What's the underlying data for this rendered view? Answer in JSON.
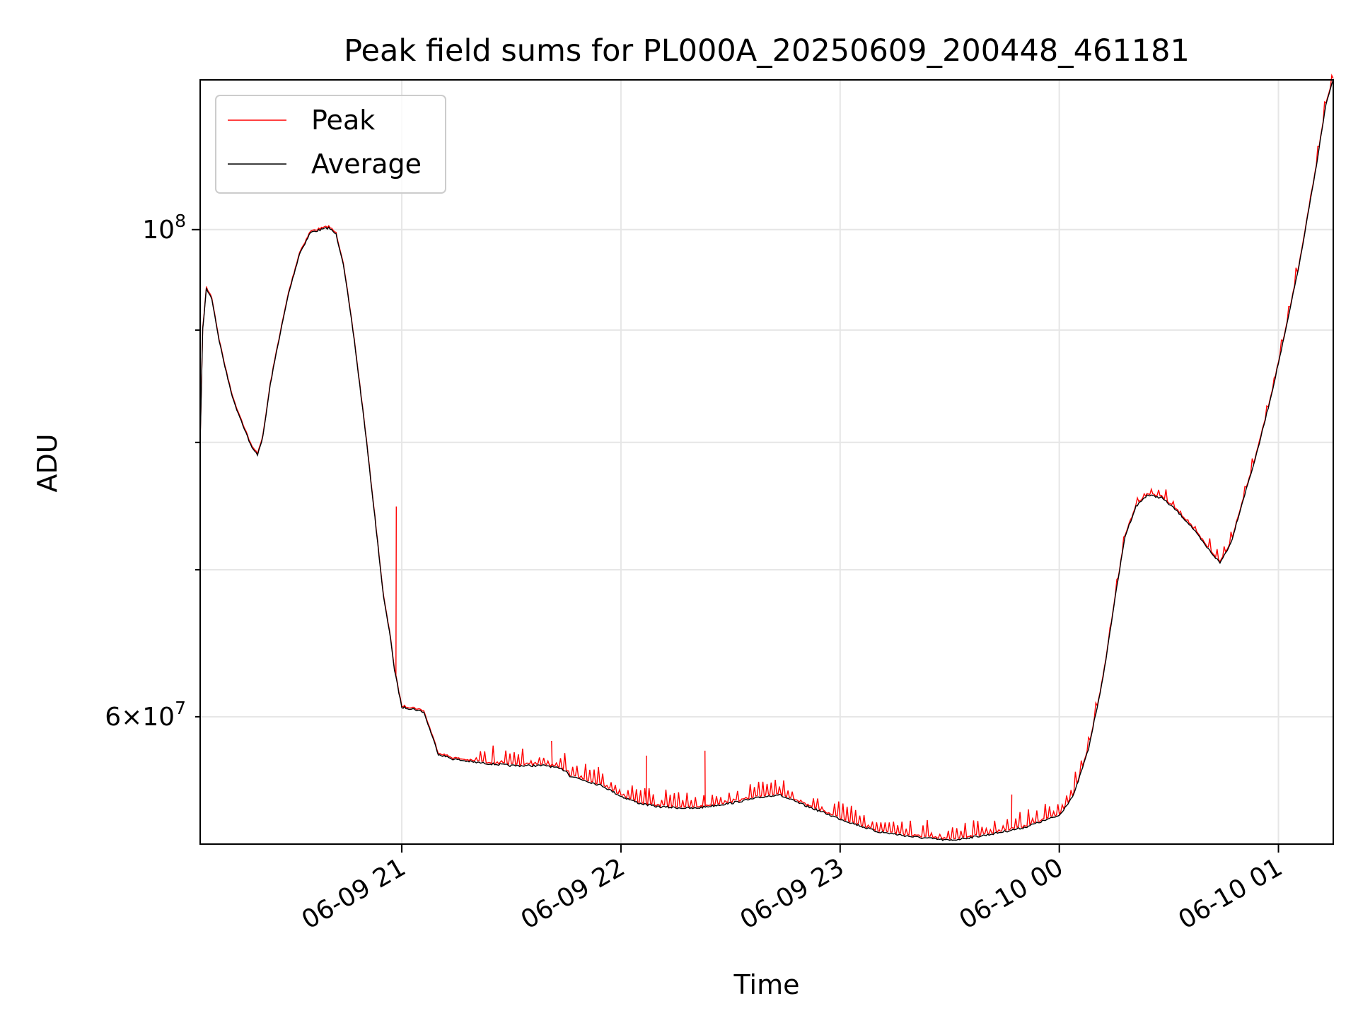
{
  "chart_data": {
    "type": "line",
    "title": "Peak field sums for PL000A_20250609_200448_461181",
    "xlabel": "Time",
    "ylabel": "ADU",
    "x_axis": {
      "kind": "datetime",
      "range": [
        "2025-06-09 20:04:48",
        "2025-06-10 01:15:00"
      ],
      "ticks": [
        "2025-06-09 21:00",
        "2025-06-09 22:00",
        "2025-06-09 23:00",
        "2025-06-10 00:00",
        "2025-06-10 01:00"
      ],
      "tick_labels": [
        "06-09 21",
        "06-09 22",
        "06-09 23",
        "06-10 00",
        "06-10 01"
      ],
      "tick_label_rotation": 30
    },
    "y_axis": {
      "scale": "log",
      "range": [
        52500000,
        117000000
      ],
      "major_ticks": [
        100000000
      ],
      "major_tick_labels": [
        "10^8"
      ],
      "minor_ticks": [
        60000000,
        70000000,
        80000000,
        90000000
      ],
      "minor_tick_labels": [
        "6×10^7",
        "",
        "",
        ""
      ]
    },
    "grid": true,
    "legend": {
      "placement": "upper left",
      "entries": [
        {
          "label": "Peak",
          "color": "#ff0000"
        },
        {
          "label": "Average",
          "color": "#000000"
        }
      ]
    },
    "series": [
      {
        "name": "Average",
        "color": "#000000",
        "x": [
          "2025-06-09 20:04:48",
          "2025-06-09 20:05:30",
          "2025-06-09 20:06:30",
          "2025-06-09 20:08:00",
          "2025-06-09 20:10:00",
          "2025-06-09 20:12:00",
          "2025-06-09 20:14:00",
          "2025-06-09 20:16:30",
          "2025-06-09 20:19:00",
          "2025-06-09 20:20:30",
          "2025-06-09 20:22:00",
          "2025-06-09 20:24:00",
          "2025-06-09 20:26:00",
          "2025-06-09 20:29:00",
          "2025-06-09 20:32:00",
          "2025-06-09 20:35:00",
          "2025-06-09 20:38:00",
          "2025-06-09 20:40:00",
          "2025-06-09 20:42:00",
          "2025-06-09 20:44:00",
          "2025-06-09 20:47:00",
          "2025-06-09 20:50:00",
          "2025-06-09 20:53:00",
          "2025-06-09 20:55:00",
          "2025-06-09 20:57:00",
          "2025-06-09 20:58:00",
          "2025-06-09 21:00:00",
          "2025-06-09 21:03:00",
          "2025-06-09 21:06:00",
          "2025-06-09 21:08:00",
          "2025-06-09 21:10:00",
          "2025-06-09 21:14:00",
          "2025-06-09 21:20:00",
          "2025-06-09 21:30:00",
          "2025-06-09 21:40:00",
          "2025-06-09 21:45:00",
          "2025-06-09 21:46:00",
          "2025-06-09 21:55:00",
          "2025-06-09 22:00:00",
          "2025-06-09 22:05:00",
          "2025-06-09 22:10:00",
          "2025-06-09 22:20:00",
          "2025-06-09 22:30:00",
          "2025-06-09 22:40:00",
          "2025-06-09 22:43:00",
          "2025-06-09 22:50:00",
          "2025-06-09 23:00:00",
          "2025-06-09 23:10:00",
          "2025-06-09 23:20:00",
          "2025-06-09 23:30:00",
          "2025-06-09 23:40:00",
          "2025-06-09 23:50:00",
          "2025-06-10 00:00:00",
          "2025-06-10 00:04:00",
          "2025-06-10 00:08:00",
          "2025-06-10 00:12:00",
          "2025-06-10 00:15:00",
          "2025-06-10 00:18:00",
          "2025-06-10 00:21:00",
          "2025-06-10 00:24:00",
          "2025-06-10 00:28:00",
          "2025-06-10 00:32:00",
          "2025-06-10 00:36:00",
          "2025-06-10 00:40:00",
          "2025-06-10 00:44:00",
          "2025-06-10 00:47:00",
          "2025-06-10 00:50:00",
          "2025-06-10 00:54:00",
          "2025-06-10 00:58:00",
          "2025-06-10 01:02:00",
          "2025-06-10 01:06:00",
          "2025-06-10 01:10:00",
          "2025-06-10 01:13:00",
          "2025-06-10 01:15:00"
        ],
        "y": [
          80000000,
          90000000,
          94000000,
          93000000,
          89000000,
          86000000,
          83500000,
          81500000,
          79500000,
          79000000,
          80500000,
          85000000,
          88500000,
          93500000,
          97500000,
          99700000,
          100000000,
          100200000,
          99500000,
          96500000,
          89000000,
          81000000,
          73000000,
          68000000,
          65000000,
          63000000,
          60600000,
          60500000,
          60300000,
          59000000,
          57700000,
          57400000,
          57200000,
          57000000,
          57000000,
          56700000,
          56400000,
          55800000,
          55200000,
          54800000,
          54600000,
          54500000,
          54800000,
          55200000,
          55300000,
          54700000,
          53900000,
          53200000,
          52900000,
          52700000,
          53000000,
          53400000,
          54100000,
          55300000,
          58000000,
          62500000,
          67500000,
          72500000,
          74800000,
          75700000,
          75500000,
          74500000,
          73300000,
          71800000,
          70500000,
          72000000,
          75000000,
          79000000,
          84000000,
          90000000,
          97000000,
          106000000,
          114000000,
          117000000
        ]
      },
      {
        "name": "Peak",
        "color": "#ff0000",
        "note_visible": "Peak tracks Average closely with frequent upward spikes",
        "spikes": [
          {
            "x": "2025-06-09 20:58:30",
            "y": 74800000
          },
          {
            "x": "2025-06-09 21:19:00",
            "y": 59200000
          },
          {
            "x": "2025-06-09 21:41:00",
            "y": 58500000
          },
          {
            "x": "2025-06-09 22:07:00",
            "y": 57600000
          },
          {
            "x": "2025-06-09 22:23:00",
            "y": 57900000
          },
          {
            "x": "2025-06-09 22:43:30",
            "y": 55600000
          },
          {
            "x": "2025-06-09 23:47:00",
            "y": 55300000
          }
        ]
      }
    ]
  }
}
